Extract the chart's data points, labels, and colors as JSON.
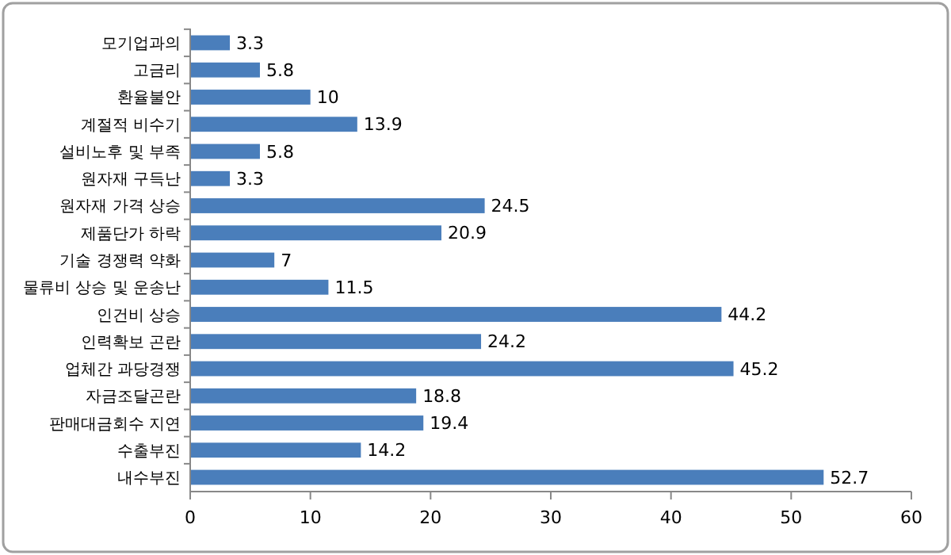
{
  "chart_data": {
    "type": "bar",
    "orientation": "horizontal",
    "categories": [
      "모기업과의",
      "고금리",
      "환율불안",
      "계절적 비수기",
      "설비노후 및 부족",
      "원자재 구득난",
      "원자재 가격 상승",
      "제품단가 하락",
      "기술 경쟁력 약화",
      "물류비 상승 및 운송난",
      "인건비 상승",
      "인력확보 곤란",
      "업체간 과당경쟁",
      "자금조달곤란",
      "판매대금회수 지연",
      "수출부진",
      "내수부진"
    ],
    "values": [
      3.3,
      5.8,
      10,
      13.9,
      5.8,
      3.3,
      24.5,
      20.9,
      7,
      11.5,
      44.2,
      24.2,
      45.2,
      18.8,
      19.4,
      14.2,
      52.7
    ],
    "color": "#4a7ebb",
    "xlim": [
      0,
      60
    ],
    "xticks": [
      0,
      10,
      20,
      30,
      40,
      50,
      60
    ],
    "data_labels": true
  }
}
